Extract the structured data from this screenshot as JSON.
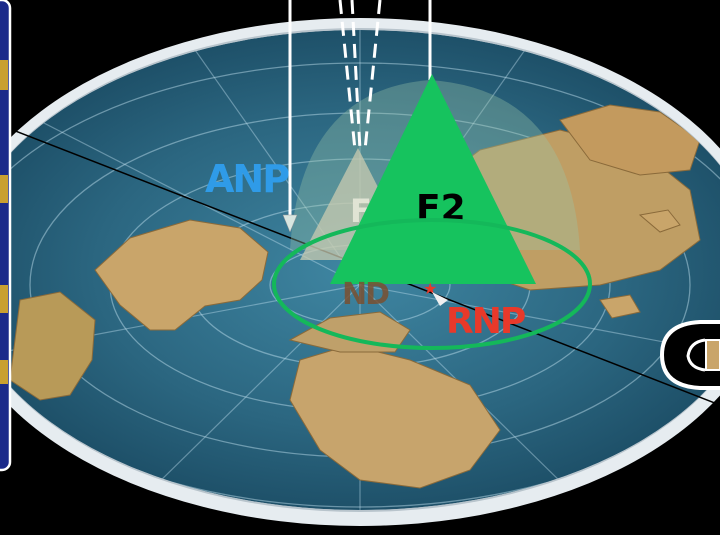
{
  "labels": {
    "anp": "ANP",
    "f2": "F2",
    "f_partial": "F",
    "nd": "ND",
    "rnp": "RNP"
  },
  "colors": {
    "background": "#000000",
    "ocean": "#2b6680",
    "land": "#c9a56a",
    "rim": "#e8eef2",
    "anp": "#2f9be8",
    "f2_fill": "#16c35e",
    "f_fill": "#c9cbb0",
    "orbit": "#14b85a",
    "rnp": "#e8392a",
    "nd": "#7a5030"
  },
  "icons": [
    "star-icon",
    "pencil-icon",
    "arrow-icon"
  ]
}
